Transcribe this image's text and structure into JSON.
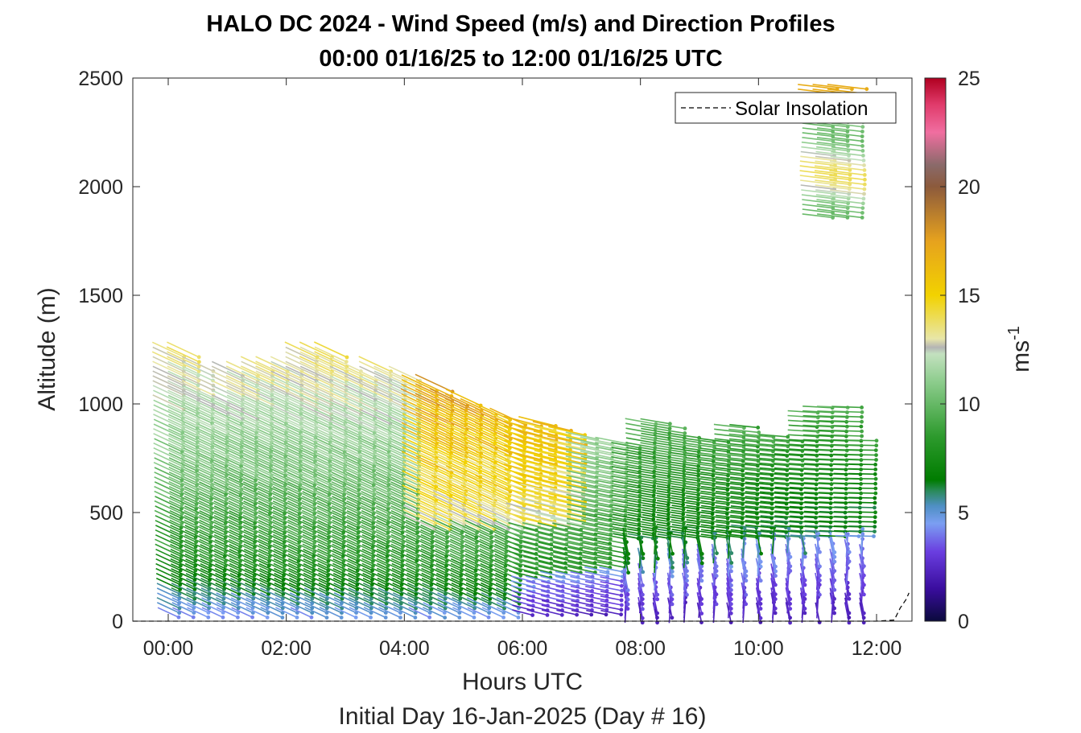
{
  "chart_data": {
    "type": "quiver",
    "title": "HALO DC 2024 - Wind Speed (m/s) and Direction Profiles",
    "subtitle": "00:00 01/16/25 to 12:00 01/16/25  UTC",
    "xlabel": "Hours UTC",
    "xlabel2": "Initial Day 16-Jan-2025 (Day # 16)",
    "ylabel": "Altitude (m)",
    "xlim": [
      -0.6,
      12.6
    ],
    "ylim": [
      0,
      2500
    ],
    "x_ticks": [
      0,
      2,
      4,
      6,
      8,
      10,
      12
    ],
    "x_tick_labels": [
      "00:00",
      "02:00",
      "04:00",
      "06:00",
      "08:00",
      "10:00",
      "12:00"
    ],
    "y_ticks": [
      0,
      500,
      1000,
      1500,
      2000,
      2500
    ],
    "y_tick_labels": [
      "0",
      "500",
      "1000",
      "1500",
      "2000",
      "2500"
    ],
    "colorbar": {
      "label": "ms",
      "label_superscript": "-1",
      "range": [
        0,
        25
      ],
      "ticks": [
        0,
        5,
        10,
        15,
        20,
        25
      ],
      "tick_labels": [
        "0",
        "5",
        "10",
        "15",
        "20",
        "25"
      ],
      "stops": [
        {
          "v": 0,
          "color": "#0a0a3c"
        },
        {
          "v": 1.5,
          "color": "#3a0d9e"
        },
        {
          "v": 3.2,
          "color": "#6a3ee0"
        },
        {
          "v": 4.5,
          "color": "#7b9ff2"
        },
        {
          "v": 5.3,
          "color": "#4f8fc4"
        },
        {
          "v": 6.0,
          "color": "#2a8a5a"
        },
        {
          "v": 6.5,
          "color": "#007c00"
        },
        {
          "v": 8.5,
          "color": "#2d9a2d"
        },
        {
          "v": 11.0,
          "color": "#8ccc8c"
        },
        {
          "v": 12.3,
          "color": "#c3e1bf"
        },
        {
          "v": 12.6,
          "color": "#b4b4b4"
        },
        {
          "v": 13.0,
          "color": "#e8e6a8"
        },
        {
          "v": 15.0,
          "color": "#f2d200"
        },
        {
          "v": 17.5,
          "color": "#e6a21e"
        },
        {
          "v": 20.0,
          "color": "#8c5a3c"
        },
        {
          "v": 21.0,
          "color": "#8a6a6a"
        },
        {
          "v": 22.5,
          "color": "#f06ea0"
        },
        {
          "v": 23.8,
          "color": "#e03a6a"
        },
        {
          "v": 25.0,
          "color": "#b00020"
        }
      ]
    },
    "legend": {
      "entries": [
        "Solar Insolation"
      ],
      "position": "top-right"
    },
    "grid": false,
    "series": [
      {
        "name": "Solar Insolation",
        "style": "dashed",
        "color": "#000000",
        "x": [
          -0.6,
          11.0,
          12.0,
          12.3,
          12.4,
          12.5,
          12.55
        ],
        "y": [
          0,
          0,
          0,
          5,
          60,
          100,
          130
        ]
      }
    ],
    "wind_profiles": {
      "description_note": "",
      "times": [
        0,
        0.25,
        0.5,
        0.75,
        1.0,
        1.25,
        1.5,
        1.75,
        2.0,
        2.25,
        2.5,
        2.75,
        3.0,
        3.25,
        3.5,
        3.75,
        4.0,
        4.25,
        4.5,
        4.75,
        5.0,
        5.25,
        5.5,
        5.75,
        6.0,
        6.25,
        6.5,
        6.75,
        7.0,
        7.25,
        7.5,
        7.75,
        8.0,
        8.25,
        8.5,
        8.75,
        9.0,
        9.25,
        9.5,
        9.75,
        10.0,
        10.25,
        10.5,
        10.75,
        11.0,
        11.25,
        11.5,
        11.75
      ],
      "top_altitudes_m": [
        1250,
        1250,
        1200,
        1050,
        1180,
        1180,
        1200,
        1200,
        1200,
        1250,
        1250,
        1250,
        1200,
        1150,
        1200,
        1150,
        1150,
        1100,
        1100,
        1050,
        1050,
        1000,
        980,
        960,
        930,
        920,
        900,
        880,
        860,
        850,
        840,
        830,
        920,
        940,
        900,
        860,
        850,
        850,
        900,
        900,
        860,
        860,
        840,
        980,
        2470,
        2470,
        2470,
        850
      ]
    }
  }
}
